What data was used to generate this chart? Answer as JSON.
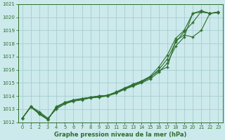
{
  "xlabel": "Graphe pression niveau de la mer (hPa)",
  "xlim": [
    -0.5,
    23.5
  ],
  "ylim": [
    1012,
    1021
  ],
  "yticks": [
    1012,
    1013,
    1014,
    1015,
    1016,
    1017,
    1018,
    1019,
    1020,
    1021
  ],
  "xticks": [
    0,
    1,
    2,
    3,
    4,
    5,
    6,
    7,
    8,
    9,
    10,
    11,
    12,
    13,
    14,
    15,
    16,
    17,
    18,
    19,
    20,
    21,
    22,
    23
  ],
  "bg_color": "#cce9ec",
  "grid_color": "#a0c8cc",
  "line_color": "#2d6e2d",
  "line1_x": [
    0,
    1,
    2,
    3,
    4,
    5,
    6,
    7,
    8,
    9,
    10,
    11,
    12,
    13,
    14,
    15,
    16,
    17,
    18,
    19,
    20,
    21,
    22,
    23
  ],
  "line1_y": [
    1012.3,
    1013.2,
    1012.8,
    1012.3,
    1013.0,
    1013.4,
    1013.6,
    1013.7,
    1013.85,
    1013.9,
    1014.0,
    1014.2,
    1014.5,
    1014.75,
    1015.0,
    1015.3,
    1015.8,
    1016.5,
    1017.8,
    1018.5,
    1020.3,
    1020.5,
    1020.3,
    1020.4
  ],
  "line2_x": [
    0,
    1,
    2,
    3,
    4,
    5,
    6,
    7,
    8,
    9,
    10,
    11,
    12,
    13,
    14,
    15,
    16,
    17,
    18,
    19,
    20,
    21,
    22,
    23
  ],
  "line2_y": [
    1012.3,
    1013.2,
    1012.6,
    1012.2,
    1013.2,
    1013.5,
    1013.7,
    1013.8,
    1013.9,
    1014.0,
    1014.05,
    1014.3,
    1014.6,
    1014.9,
    1015.15,
    1015.5,
    1016.2,
    1017.1,
    1018.4,
    1019.0,
    1020.3,
    1020.4,
    1020.3,
    1020.4
  ],
  "line3_x": [
    0,
    1,
    2,
    3,
    4,
    5,
    6,
    7,
    8,
    9,
    10,
    11,
    12,
    13,
    14,
    15,
    16,
    17,
    18,
    19,
    20,
    21,
    22,
    23
  ],
  "line3_y": [
    1012.3,
    1013.15,
    1012.65,
    1012.2,
    1013.15,
    1013.5,
    1013.7,
    1013.8,
    1013.9,
    1014.0,
    1014.05,
    1014.3,
    1014.6,
    1014.85,
    1015.1,
    1015.45,
    1015.9,
    1016.2,
    1018.2,
    1018.65,
    1018.5,
    1019.0,
    1020.3,
    1020.35
  ],
  "line4_x": [
    0,
    1,
    2,
    3,
    4,
    5,
    6,
    7,
    8,
    9,
    10,
    11,
    12,
    13,
    14,
    15,
    16,
    17,
    18,
    19,
    20,
    21,
    22,
    23
  ],
  "line4_y": [
    1012.3,
    1013.2,
    1012.7,
    1012.25,
    1013.1,
    1013.45,
    1013.65,
    1013.75,
    1013.88,
    1013.95,
    1014.02,
    1014.25,
    1014.55,
    1014.8,
    1015.05,
    1015.4,
    1016.0,
    1016.8,
    1018.1,
    1018.9,
    1019.6,
    1020.45,
    1020.3,
    1020.38
  ]
}
